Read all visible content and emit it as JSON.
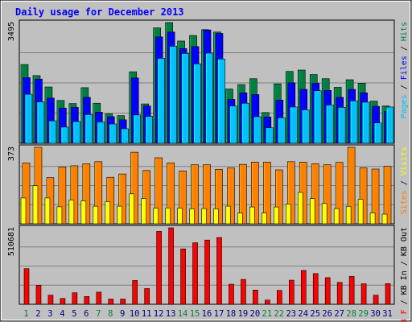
{
  "chart_data": {
    "type": "bar",
    "title": "Daily usage for December 2013",
    "categories": [
      "1",
      "2",
      "3",
      "4",
      "5",
      "6",
      "7",
      "8",
      "9",
      "10",
      "11",
      "12",
      "13",
      "14",
      "15",
      "16",
      "17",
      "18",
      "19",
      "20",
      "21",
      "22",
      "23",
      "24",
      "25",
      "26",
      "27",
      "28",
      "29",
      "30",
      "31"
    ],
    "weekend_days": [
      "1",
      "7",
      "8",
      "14",
      "15",
      "21",
      "22",
      "28",
      "29"
    ],
    "panels": [
      {
        "id": "traffic",
        "ymax": 3495,
        "ymax_label": "3495",
        "legend": [
          "Pages",
          "Files",
          "Hits"
        ],
        "series": [
          {
            "name": "Hits",
            "color": "#008040",
            "values": [
              2280,
              1960,
              1630,
              1240,
              1150,
              1610,
              1160,
              850,
              800,
              2070,
              1140,
              3340,
              3495,
              2960,
              3120,
              3290,
              3220,
              1570,
              1700,
              1870,
              890,
              1720,
              2080,
              2120,
              1990,
              1870,
              1620,
              1840,
              1740,
              1220,
              1080
            ]
          },
          {
            "name": "Files",
            "color": "#0000ff",
            "values": [
              1900,
              1860,
              1310,
              1020,
              1040,
              1330,
              900,
              770,
              680,
              1890,
              1080,
              3080,
              3220,
              2740,
              2800,
              3280,
              3180,
              1270,
              1460,
              1410,
              760,
              1250,
              1750,
              1560,
              1740,
              1530,
              1330,
              1560,
              1460,
              1070,
              920
            ]
          },
          {
            "name": "Pages",
            "color": "#00c0ff",
            "values": [
              1420,
              1200,
              650,
              470,
              630,
              830,
              620,
              560,
              420,
              820,
              780,
              2460,
              2810,
              2600,
              2300,
              2610,
              2440,
              1080,
              1160,
              770,
              450,
              740,
              1050,
              970,
              1520,
              1110,
              1040,
              1230,
              1190,
              590,
              1050
            ]
          }
        ]
      },
      {
        "id": "visitors",
        "ymax": 373,
        "ymax_label": "373",
        "legend": [
          "Sites",
          "Visits"
        ],
        "series": [
          {
            "name": "Sites",
            "color": "#ff8000",
            "values": [
              297,
              373,
              225,
              277,
              283,
              293,
              303,
              227,
              243,
              349,
              260,
              322,
              297,
              258,
              288,
              288,
              266,
              272,
              290,
              301,
              301,
              263,
              303,
              301,
              293,
              288,
              300,
              373,
              273,
              267,
              280
            ]
          },
          {
            "name": "Visits",
            "color": "#ffff00",
            "values": [
              126,
              186,
              126,
              83,
              116,
              112,
              86,
              108,
              86,
              146,
              123,
              76,
              77,
              76,
              73,
              74,
              73,
              86,
              52,
              82,
              53,
              82,
              96,
              153,
              123,
              99,
              74,
              85,
              119,
              53,
              47
            ]
          }
        ]
      },
      {
        "id": "kbytes",
        "ymax": 510681,
        "ymax_label": "510681",
        "legend": [
          "KB F",
          "KB In",
          "KB Out"
        ],
        "series": [
          {
            "name": "KB F",
            "color": "#ff0000",
            "values": [
              238000,
              127000,
              61000,
              39000,
              77000,
              52000,
              81000,
              35000,
              35000,
              159000,
              105000,
              487000,
              510681,
              370000,
              411000,
              429000,
              446000,
              134000,
              166000,
              95000,
              28000,
              93000,
              161000,
              226000,
              205000,
              178000,
              146000,
              186000,
              137000,
              61000,
              138000
            ]
          }
        ]
      }
    ]
  }
}
